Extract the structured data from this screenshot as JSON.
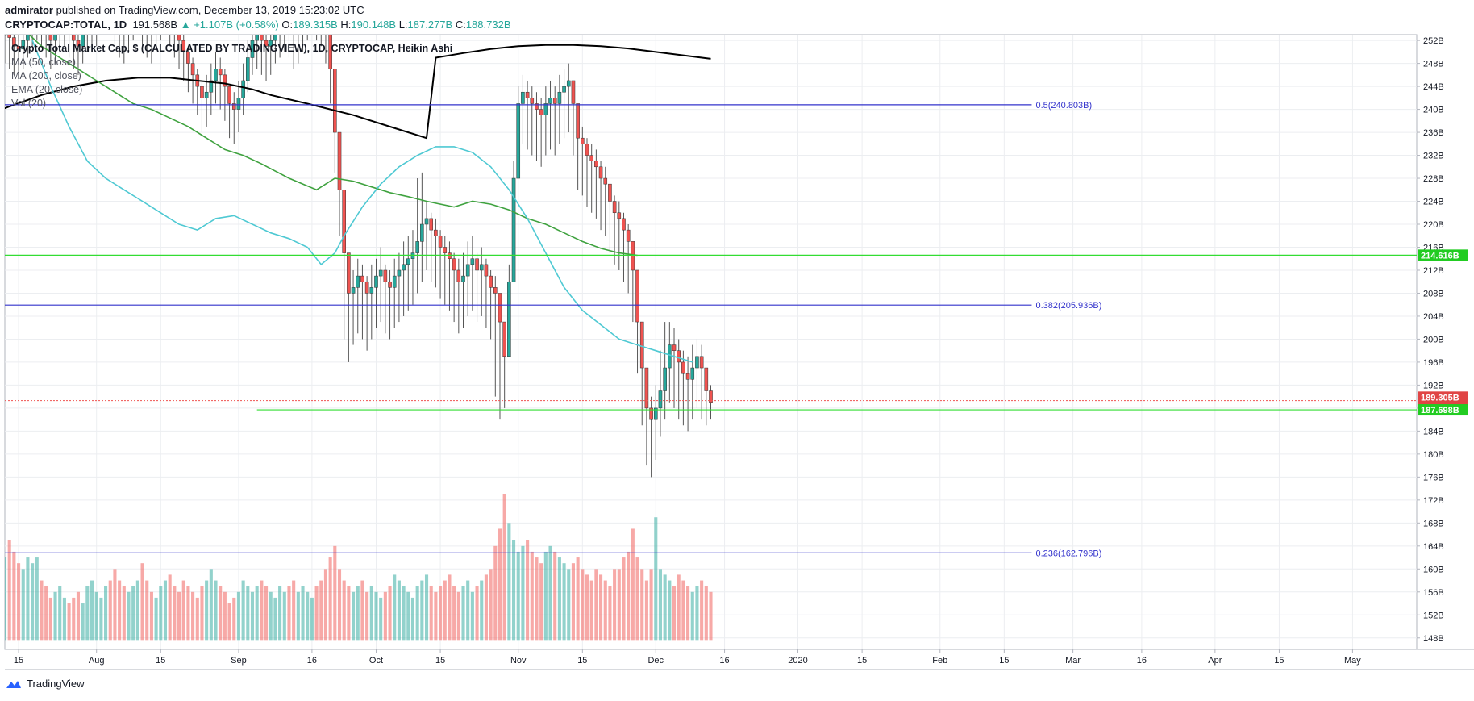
{
  "header": {
    "author": "admirator",
    "published_text": "published on TradingView.com, December 13, 2019 15:23:02 UTC",
    "symbol": "CRYPTOCAP:TOTAL, 1D",
    "last": "191.568B",
    "change": "▲ +1.107B (+0.58%)",
    "o_label": "O:",
    "o": "189.315B",
    "h_label": "H:",
    "h": "190.148B",
    "l_label": "L:",
    "l": "187.277B",
    "c_label": "C:",
    "c": "188.732B"
  },
  "legend": {
    "title": "Crypto Total Market Cap, $ (CALCULATED BY TRADINGVIEW), 1D, CRYPTOCAP, Heikin Ashi",
    "ma50": "MA (50, close)",
    "ma200": "MA (200, close)",
    "ema20": "EMA (20, close)",
    "vol": "Vol (20)"
  },
  "footer": {
    "brand": "TradingView"
  },
  "colors": {
    "up": "#26a69a",
    "down": "#ef5350",
    "ma50": "#3fa23f",
    "ma200": "#000000",
    "ema20": "#4fc9d3",
    "fib": "#3333cc",
    "green_line": "#33dd33"
  },
  "chart_data": {
    "type": "candlestick",
    "title": "Crypto Total Market Cap, $ (CALCULATED BY TRADINGVIEW), 1D, CRYPTOCAP, Heikin Ashi",
    "y_unit": "B",
    "ylim": [
      146,
      253
    ],
    "y_ticks": [
      148,
      152,
      156,
      160,
      164,
      168,
      172,
      176,
      180,
      184,
      188,
      192,
      196,
      200,
      204,
      208,
      212,
      216,
      220,
      224,
      228,
      232,
      236,
      240,
      244,
      248,
      252
    ],
    "y_tick_labels": [
      "148B",
      "152B",
      "156B",
      "160B",
      "164B",
      "168B",
      "172B",
      "176B",
      "180B",
      "184B",
      "188B",
      "192B",
      "196B",
      "200B",
      "204B",
      "208B",
      "212B",
      "216B",
      "220B",
      "224B",
      "228B",
      "232B",
      "236B",
      "240B",
      "244B",
      "248B",
      "252B"
    ],
    "x_labels": [
      {
        "label": "15",
        "day": -1
      },
      {
        "label": "Aug",
        "day": 16
      },
      {
        "label": "15",
        "day": 30
      },
      {
        "label": "Sep",
        "day": 47
      },
      {
        "label": "16",
        "day": 63
      },
      {
        "label": "Oct",
        "day": 77
      },
      {
        "label": "15",
        "day": 91
      },
      {
        "label": "Nov",
        "day": 108
      },
      {
        "label": "15",
        "day": 122
      },
      {
        "label": "Dec",
        "day": 138
      },
      {
        "label": "16",
        "day": 153
      },
      {
        "label": "2020",
        "day": 169
      },
      {
        "label": "15",
        "day": 183
      },
      {
        "label": "Feb",
        "day": 200
      },
      {
        "label": "15",
        "day": 214
      },
      {
        "label": "Mar",
        "day": 229
      },
      {
        "label": "16",
        "day": 244
      },
      {
        "label": "Apr",
        "day": 260
      },
      {
        "label": "15",
        "day": 274
      },
      {
        "label": "May",
        "day": 290
      }
    ],
    "x_range_days": [
      -4,
      304
    ],
    "last_bar_day": 150,
    "candle_close": [
      253,
      252.5,
      251,
      250.5,
      252,
      254,
      256,
      257,
      256,
      254,
      252,
      253,
      255,
      256,
      254,
      252,
      251,
      253,
      255,
      256,
      256,
      258,
      259,
      258,
      256,
      254,
      253,
      255,
      257,
      258,
      256,
      254,
      253,
      255,
      257,
      258,
      256,
      254,
      252,
      250,
      248,
      246,
      244,
      242,
      243,
      245,
      247,
      246,
      244,
      241,
      240,
      242,
      245,
      249,
      252,
      253,
      252,
      251,
      252,
      254,
      255,
      256,
      255,
      253,
      254,
      256,
      258,
      260,
      258,
      257,
      254,
      247,
      236,
      226,
      215,
      208,
      209,
      211,
      210,
      208,
      209,
      211,
      212,
      210,
      209,
      211,
      212,
      213,
      214,
      215,
      217,
      220,
      221,
      219,
      218,
      216,
      215,
      214,
      212,
      210,
      211,
      213,
      214,
      212,
      213,
      211,
      209,
      208,
      203,
      197,
      210,
      228,
      241,
      243,
      242,
      241,
      240,
      239,
      241,
      242,
      241,
      243,
      244,
      245,
      241,
      235,
      234,
      232,
      231,
      230,
      228,
      227,
      224,
      222,
      221,
      219,
      217,
      212,
      203,
      195,
      188,
      186,
      188,
      191,
      195,
      199,
      198,
      196,
      194,
      193,
      195,
      197,
      195,
      191,
      189
    ],
    "candle_high": [
      256,
      255,
      254,
      254,
      255,
      257,
      259,
      260,
      259,
      257,
      255,
      256,
      258,
      259,
      257,
      255,
      254,
      256,
      258,
      259,
      259,
      261,
      262,
      261,
      259,
      257,
      256,
      258,
      260,
      261,
      259,
      257,
      256,
      258,
      260,
      261,
      259,
      257,
      255,
      253,
      251,
      249,
      247,
      245,
      246,
      248,
      250,
      249,
      247,
      244,
      243,
      245,
      248,
      252,
      255,
      256,
      255,
      254,
      255,
      257,
      258,
      259,
      258,
      256,
      257,
      259,
      261,
      263,
      261,
      260,
      257,
      250,
      239,
      229,
      219,
      211,
      212,
      214,
      213,
      211,
      213,
      214,
      216,
      213,
      212,
      214,
      215,
      217,
      218,
      219,
      228,
      229,
      224,
      222,
      221,
      219,
      218,
      217,
      215,
      214,
      215,
      217,
      218,
      215,
      216,
      214,
      212,
      211,
      206,
      200,
      213,
      231,
      244,
      246,
      245,
      244,
      243,
      242,
      244,
      245,
      244,
      246,
      247,
      248,
      244,
      238,
      237,
      235,
      234,
      233,
      231,
      230,
      227,
      225,
      224,
      222,
      220,
      215,
      206,
      198,
      192,
      190,
      192,
      198,
      203,
      203,
      202,
      200,
      198,
      197,
      199,
      200,
      199,
      195,
      192
    ],
    "candle_low": [
      248,
      247,
      246,
      246,
      247,
      249,
      251,
      252,
      251,
      249,
      247,
      248,
      250,
      251,
      249,
      247,
      246,
      248,
      250,
      251,
      251,
      253,
      254,
      253,
      251,
      249,
      248,
      250,
      252,
      253,
      251,
      249,
      248,
      250,
      252,
      253,
      251,
      249,
      247,
      245,
      243,
      241,
      239,
      236,
      237,
      239,
      241,
      240,
      238,
      235,
      234,
      236,
      239,
      243,
      246,
      247,
      246,
      245,
      246,
      248,
      249,
      250,
      249,
      247,
      248,
      250,
      252,
      254,
      252,
      251,
      248,
      241,
      229,
      218,
      200,
      196,
      199,
      201,
      200,
      198,
      200,
      202,
      203,
      201,
      200,
      202,
      203,
      204,
      205,
      206,
      208,
      210,
      212,
      210,
      209,
      207,
      206,
      205,
      203,
      201,
      202,
      204,
      205,
      203,
      204,
      202,
      200,
      190,
      186,
      188,
      201,
      219,
      232,
      234,
      233,
      232,
      231,
      230,
      232,
      233,
      232,
      234,
      235,
      236,
      232,
      226,
      225,
      223,
      222,
      221,
      219,
      218,
      215,
      213,
      212,
      210,
      208,
      203,
      194,
      185,
      178,
      176,
      179,
      183,
      186,
      189,
      188,
      186,
      185,
      184,
      186,
      188,
      186,
      185,
      186
    ],
    "ma200": [
      [
        0,
        180
      ],
      [
        10,
        185.5
      ],
      [
        20,
        191
      ],
      [
        30,
        196.5
      ],
      [
        40,
        202
      ],
      [
        50,
        207.5
      ],
      [
        60,
        212.5
      ],
      [
        70,
        217.5
      ],
      [
        80,
        222
      ],
      [
        90,
        226.5
      ],
      [
        100,
        231
      ],
      [
        110,
        235.5
      ],
      [
        117,
        238
      ],
      [
        125,
        240.5
      ],
      [
        132,
        242.5
      ],
      [
        139,
        244
      ],
      [
        146,
        245
      ],
      [
        153,
        245.5
      ],
      [
        160,
        245.5
      ],
      [
        166,
        245
      ],
      [
        172,
        244.5
      ],
      [
        178,
        243.5
      ],
      [
        182,
        242.5
      ],
      [
        190,
        241
      ],
      [
        200,
        239
      ],
      [
        210,
        236.5
      ],
      [
        216,
        235
      ],
      [
        218,
        249
      ],
      [
        224,
        249.8
      ],
      [
        230,
        250.5
      ],
      [
        236,
        251
      ],
      [
        242,
        251.2
      ],
      [
        248,
        251.2
      ],
      [
        254,
        251
      ],
      [
        260,
        250.6
      ],
      [
        266,
        250
      ],
      [
        272,
        249.4
      ],
      [
        278,
        248.8
      ]
    ],
    "ma50": [
      [
        128,
        254
      ],
      [
        132,
        251
      ],
      [
        136,
        249
      ],
      [
        140,
        247
      ],
      [
        144,
        245
      ],
      [
        148,
        243
      ],
      [
        152,
        241
      ],
      [
        156,
        240
      ],
      [
        160,
        238.5
      ],
      [
        164,
        237
      ],
      [
        168,
        235
      ],
      [
        172,
        233
      ],
      [
        176,
        232
      ],
      [
        180,
        230.5
      ],
      [
        186,
        228
      ],
      [
        192,
        226
      ],
      [
        196,
        228
      ],
      [
        200,
        227.5
      ],
      [
        204,
        226.5
      ],
      [
        208,
        225.5
      ],
      [
        212,
        224.8
      ],
      [
        216,
        224
      ],
      [
        222,
        223
      ],
      [
        226,
        224
      ],
      [
        230,
        223.5
      ],
      [
        234,
        222.5
      ],
      [
        238,
        221
      ],
      [
        242,
        220
      ],
      [
        246,
        218.5
      ],
      [
        250,
        217
      ],
      [
        254,
        215.8
      ],
      [
        258,
        215
      ],
      [
        262,
        214.6
      ]
    ],
    "ema20": [
      [
        130,
        252
      ],
      [
        134,
        244
      ],
      [
        138,
        237
      ],
      [
        142,
        231
      ],
      [
        146,
        228
      ],
      [
        150,
        226
      ],
      [
        154,
        224
      ],
      [
        158,
        222
      ],
      [
        162,
        220
      ],
      [
        166,
        219
      ],
      [
        170,
        221
      ],
      [
        174,
        221.5
      ],
      [
        178,
        220
      ],
      [
        182,
        218.5
      ],
      [
        186,
        217.5
      ],
      [
        190,
        216
      ],
      [
        193,
        213
      ],
      [
        196,
        215
      ],
      [
        198,
        218
      ],
      [
        202,
        223
      ],
      [
        206,
        227
      ],
      [
        210,
        230
      ],
      [
        214,
        232
      ],
      [
        218,
        233.5
      ],
      [
        222,
        233.5
      ],
      [
        226,
        232.5
      ],
      [
        230,
        230
      ],
      [
        234,
        226
      ],
      [
        238,
        221
      ],
      [
        242,
        215
      ],
      [
        246,
        209
      ],
      [
        250,
        205
      ],
      [
        254,
        202.5
      ],
      [
        258,
        200
      ],
      [
        262,
        199
      ],
      [
        266,
        198
      ],
      [
        270,
        197
      ],
      [
        274,
        196
      ]
    ],
    "volume": [
      162,
      165,
      163,
      161,
      160,
      162,
      161,
      162,
      158,
      157,
      155,
      156,
      157,
      155,
      154,
      155,
      156,
      154,
      157,
      158,
      156,
      155,
      157,
      158,
      160,
      158,
      157,
      156,
      157,
      158,
      161,
      158,
      156,
      155,
      157,
      158,
      159,
      157,
      156,
      158,
      157,
      156,
      155,
      157,
      158,
      160,
      158,
      157,
      156,
      154,
      155,
      156,
      158,
      157,
      156,
      157,
      158,
      157,
      156,
      155,
      157,
      156,
      157,
      158,
      156,
      157,
      156,
      155,
      157,
      158,
      160,
      162,
      164,
      160,
      158,
      157,
      156,
      157,
      158,
      156,
      157,
      156,
      155,
      156,
      157,
      159,
      158,
      157,
      156,
      155,
      157,
      158,
      159,
      157,
      156,
      157,
      158,
      159,
      157,
      156,
      157,
      158,
      156,
      157,
      158,
      159,
      160,
      164,
      167,
      173,
      168,
      165,
      163,
      164,
      165,
      163,
      162,
      161,
      163,
      164,
      163,
      162,
      161,
      160,
      161,
      162,
      160,
      159,
      158,
      160,
      159,
      158,
      157,
      160,
      160,
      162,
      163,
      167,
      162,
      160,
      158,
      160,
      169,
      160,
      159,
      158,
      157,
      159,
      158,
      157,
      156,
      157,
      158,
      157,
      156
    ],
    "volume_base": 147.5
  },
  "annotations": {
    "fib_05": {
      "label": "0.5(240.803B)",
      "value": 240.803
    },
    "fib_0382": {
      "label": "0.382(205.936B)",
      "value": 205.936
    },
    "fib_0236": {
      "label": "0.236(162.796B)",
      "value": 162.796
    },
    "hline_green_upper": {
      "label": "214.616B",
      "value": 214.616
    },
    "hline_green_lower": {
      "label": "187.698B",
      "value": 187.698,
      "start_day": 51
    },
    "price_dotted": {
      "label": "189.305B",
      "value": 189.305
    },
    "price_current": {
      "label": "188.732B",
      "value": 188.732
    }
  }
}
